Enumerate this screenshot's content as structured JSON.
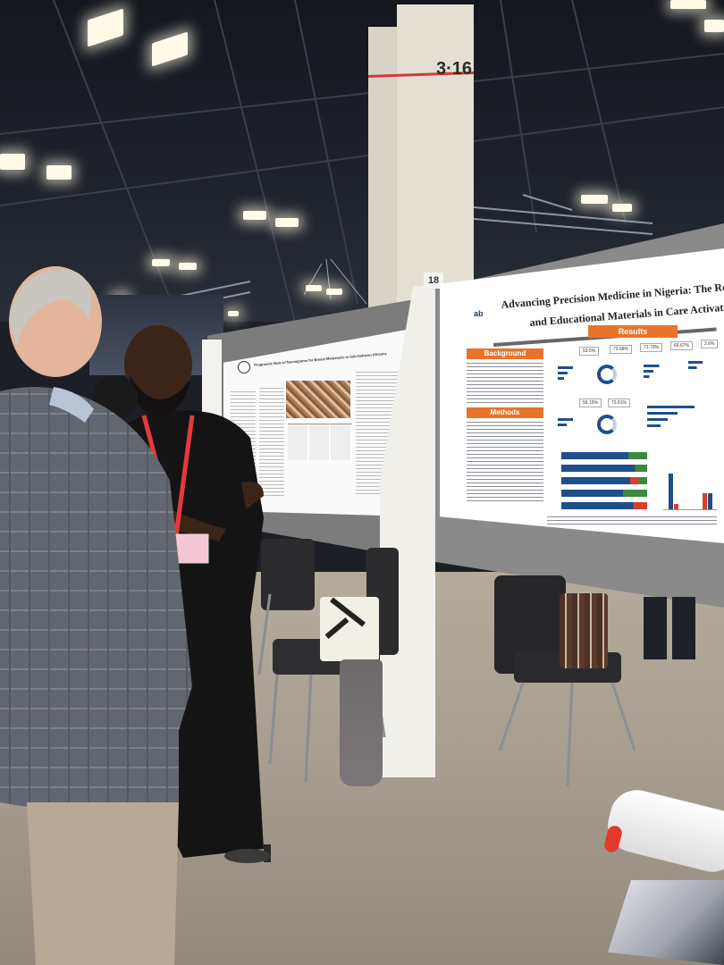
{
  "venue": {
    "pillar_number": "3·16",
    "board_number": "18"
  },
  "main_poster": {
    "title_line1": "Advancing Precision Medicine in Nigeria: The Role of Patient E",
    "title_line2": "and Educational Materials in Care Activation—A Pilot St",
    "sections": {
      "background": "Background",
      "methods": "Methods",
      "results": "Results"
    },
    "stats_row1": [
      "53.5%",
      "73.68%",
      "71.73%",
      "66.67%",
      "2.6%"
    ],
    "stats_row2": [
      "56.15%",
      "73.61%"
    ]
  },
  "left_poster": {
    "title": "Prognostic Role of Nomograms for Breast Metastasis in Sub-Saharan Africans"
  },
  "colors": {
    "accent_orange": "#e8742c",
    "chart_blue": "#1f4e8c",
    "chart_green": "#3b8a3b",
    "chart_red": "#d8402b"
  }
}
